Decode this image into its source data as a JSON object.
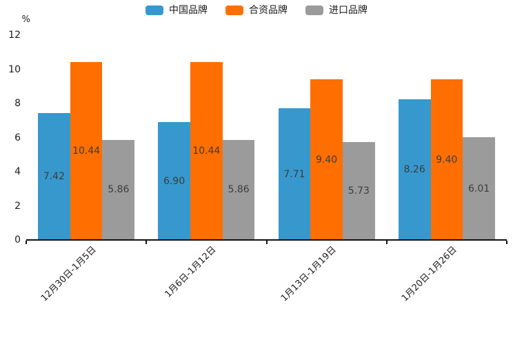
{
  "colors": {
    "series_blue": "#3798ce",
    "series_orange": "#ff6e00",
    "series_gray": "#9b9b9b",
    "axis": "#111111",
    "tick_text": "#1a1a1a",
    "bar_label_text": "#3c3c3c"
  },
  "chart_data": {
    "type": "bar",
    "title": "",
    "ylabel": "%",
    "xlabel": "",
    "ylim": [
      0,
      12
    ],
    "yticks": [
      0,
      2,
      4,
      6,
      8,
      10,
      12
    ],
    "grid": false,
    "legend_position": "top",
    "categories": [
      "12月30日-1月5日",
      "1月6日-1月12日",
      "1月13日-1月19日",
      "1月20日-1月26日"
    ],
    "series": [
      {
        "name": "中国品牌",
        "color": "#3798ce",
        "values": [
          7.42,
          6.9,
          7.71,
          8.26
        ],
        "labels": [
          "7.42",
          "6.90",
          "7.71",
          "8.26"
        ]
      },
      {
        "name": "合资品牌",
        "color": "#ff6e00",
        "values": [
          10.44,
          10.44,
          9.4,
          9.4
        ],
        "labels": [
          "10.44",
          "10.44",
          "9.40",
          "9.40"
        ]
      },
      {
        "name": "进口品牌",
        "color": "#9b9b9b",
        "values": [
          5.86,
          5.86,
          5.73,
          6.01
        ],
        "labels": [
          "5.86",
          "5.86",
          "5.73",
          "6.01"
        ]
      }
    ]
  }
}
